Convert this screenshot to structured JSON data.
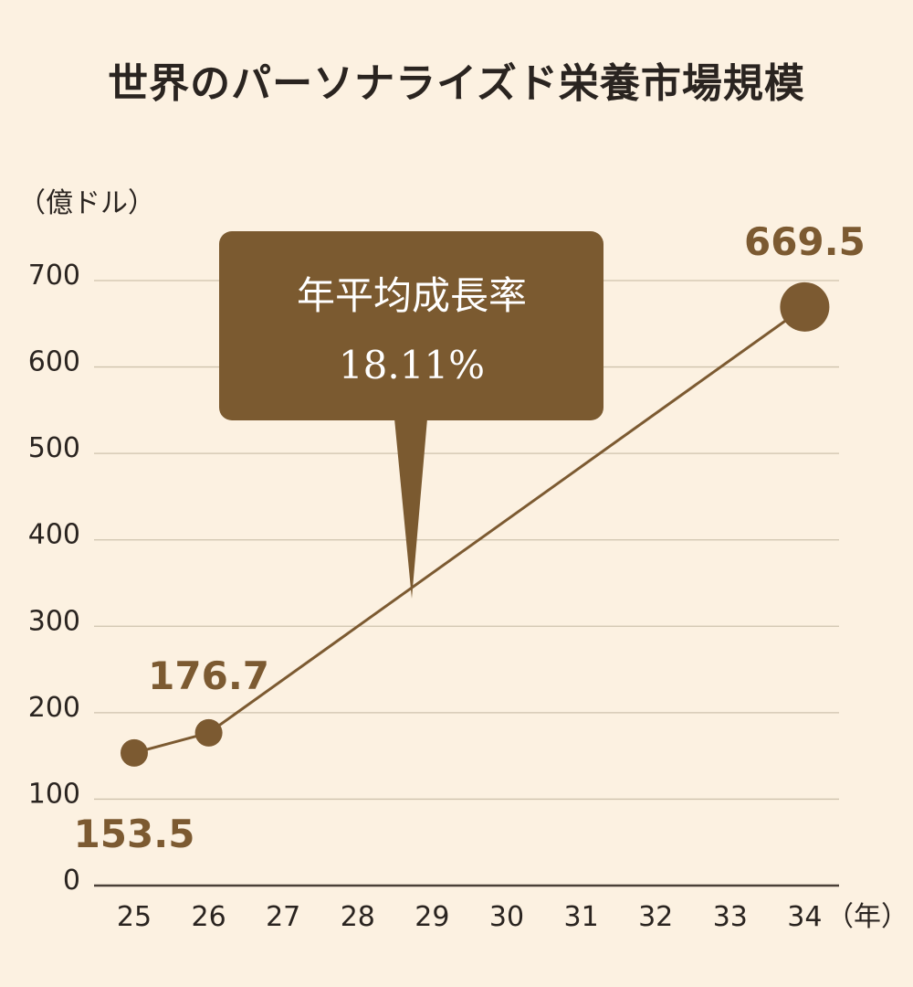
{
  "chart_data": {
    "type": "line",
    "title": "世界のパーソナライズド栄養市場規模",
    "ylabel": "（億ドル）",
    "xlabel": "（年）",
    "ylim": [
      0,
      700
    ],
    "yticks": [
      0,
      100,
      200,
      300,
      400,
      500,
      600,
      700
    ],
    "x": [
      "25",
      "26",
      "27",
      "28",
      "29",
      "30",
      "31",
      "32",
      "33",
      "34"
    ],
    "series": [
      {
        "points": [
          {
            "x": "25",
            "y": 153.5,
            "label": "153.5"
          },
          {
            "x": "26",
            "y": 176.7,
            "label": "176.7"
          },
          {
            "x": "34",
            "y": 669.5,
            "label": "669.5"
          }
        ]
      }
    ],
    "annotation": {
      "line1": "年平均成長率",
      "line2": "18.11%"
    },
    "grid": true,
    "colors": {
      "background": "#fcf1e1",
      "series": "#7c5a31",
      "callout": "#7b5a30",
      "grid": "#cfc3ad"
    }
  }
}
